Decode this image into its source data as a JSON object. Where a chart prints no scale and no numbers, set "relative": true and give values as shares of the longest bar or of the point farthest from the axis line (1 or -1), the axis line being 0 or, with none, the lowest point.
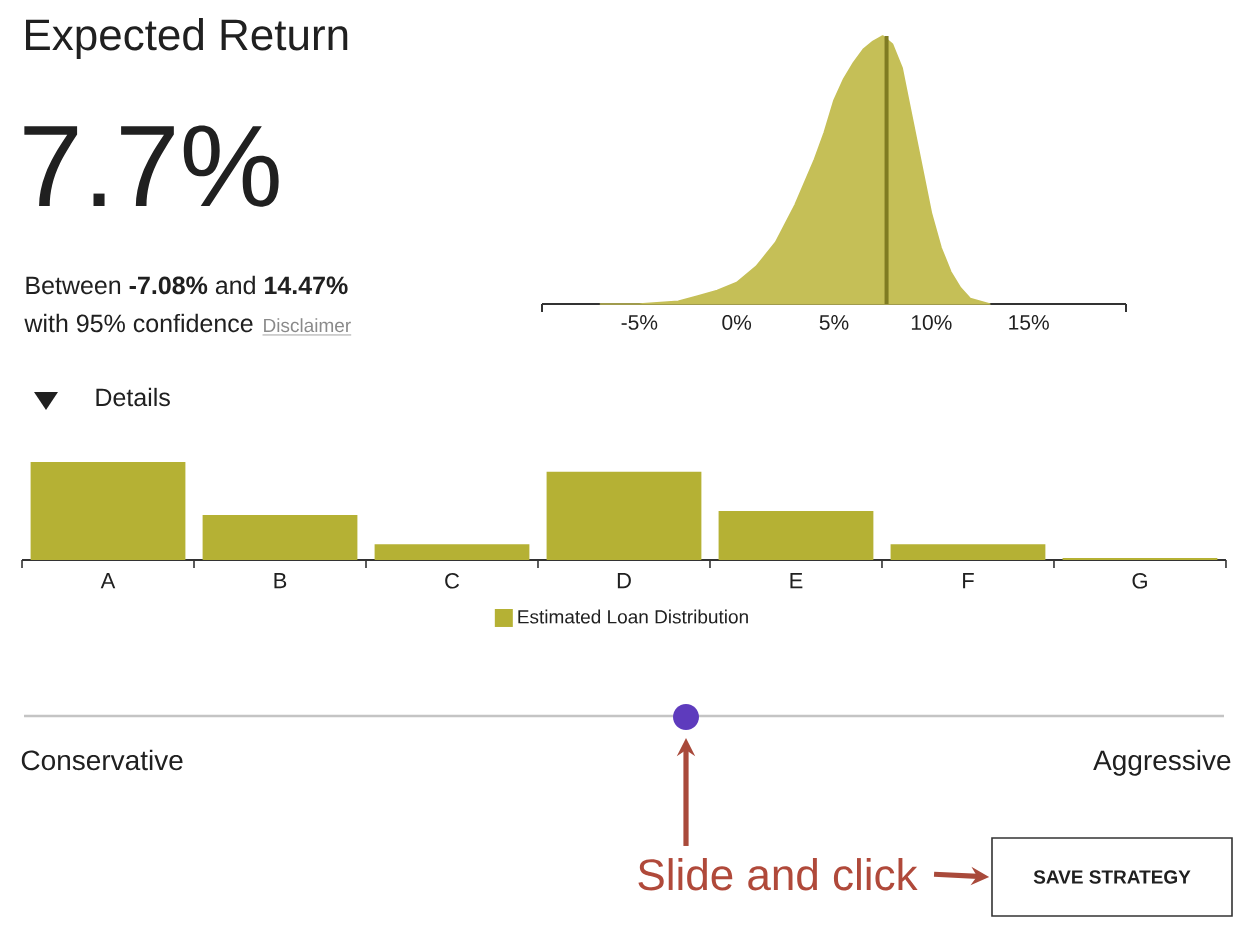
{
  "chart_data": [
    {
      "type": "other",
      "title": "Expected Return",
      "annotations": [
        "7.7%",
        "Between **-7.08%** and **14.47%**",
        "with 95% confidence",
        "Disclaimer"
      ]
    },
    {
      "type": "area",
      "relative": true,
      "x": [
        -7,
        -5,
        -3,
        -2,
        -1,
        0,
        1,
        2,
        3,
        4,
        4.5,
        5,
        5.5,
        6,
        6.5,
        7,
        7.5,
        8,
        8.5,
        9,
        9.5,
        10,
        10.5,
        11,
        11.5,
        12,
        12.5,
        13
      ],
      "values": [
        0,
        0,
        0.01,
        0.03,
        0.05,
        0.08,
        0.14,
        0.23,
        0.37,
        0.54,
        0.64,
        0.76,
        0.84,
        0.9,
        0.95,
        0.98,
        1,
        0.97,
        0.88,
        0.7,
        0.52,
        0.34,
        0.21,
        0.12,
        0.06,
        0.02,
        0.01,
        0
      ],
      "color": "#c5bf57",
      "xlim": [
        -10,
        20
      ],
      "xticks": [
        {
          "value": -10,
          "label": null
        },
        {
          "value": -5,
          "label": "-5%"
        },
        {
          "value": 0,
          "label": "0%"
        },
        {
          "value": 5,
          "label": "5%"
        },
        {
          "value": 10,
          "label": "10%"
        },
        {
          "value": 15,
          "label": "15%"
        },
        {
          "value": 20,
          "label": null
        }
      ],
      "ref_lines": [
        {
          "axis": "x",
          "value": 7.7,
          "color": "#7f7b22"
        }
      ]
    },
    {
      "type": "bar",
      "relative": true,
      "title": "Details",
      "categories": [
        "A",
        "B",
        "C",
        "D",
        "E",
        "F",
        "G"
      ],
      "series": [
        {
          "name": "Estimated Loan Distribution",
          "color": "#b5b134",
          "values": [
            1,
            0.46,
            0.16,
            0.9,
            0.5,
            0.16,
            0.02
          ]
        }
      ],
      "legend": "bottom"
    },
    {
      "type": "other",
      "annotations": [
        "Conservative",
        "Aggressive",
        "Slide and click",
        "SAVE STRATEGY"
      ]
    }
  ]
}
